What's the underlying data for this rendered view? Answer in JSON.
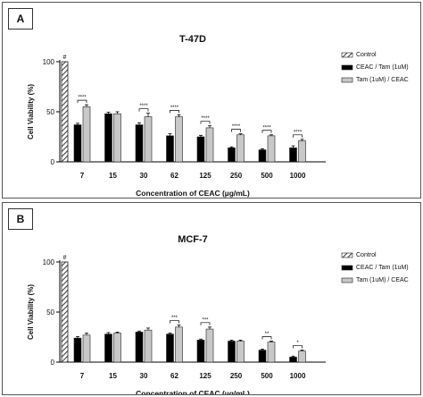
{
  "panels": [
    {
      "letter": "A"
    },
    {
      "letter": "B"
    }
  ],
  "chart_data": [
    {
      "type": "bar",
      "title": "T-47D",
      "xlabel": "Concentration of CEAC (µg/mL)",
      "ylabel": "Cell Viability (%)",
      "ylim": [
        0,
        100
      ],
      "yticks": [
        0,
        50,
        100
      ],
      "categories": [
        "7",
        "15",
        "30",
        "62",
        "125",
        "250",
        "500",
        "1000"
      ],
      "control": {
        "name": "Control",
        "value": 100,
        "annotation": "#"
      },
      "series": [
        {
          "name": "CEAC / Tam (1uM)",
          "color": "#000000",
          "values": [
            37,
            48,
            37,
            26,
            25,
            14,
            12,
            14
          ],
          "errors": [
            1.5,
            1.5,
            2,
            2,
            1.5,
            1,
            1,
            2
          ]
        },
        {
          "name": "Tam (1uM) / CEAC",
          "color": "#c8c8c8",
          "values": [
            55,
            48,
            45,
            45,
            34,
            27,
            26,
            21
          ],
          "errors": [
            2,
            2,
            3.5,
            2,
            2,
            1,
            1,
            1.5
          ]
        }
      ],
      "significance": [
        "****",
        "",
        "****",
        "****",
        "****",
        "****",
        "****",
        "****"
      ],
      "legend_position": "right"
    },
    {
      "type": "bar",
      "title": "MCF-7",
      "xlabel": "Concentration of CEAC (µg/mL)",
      "ylabel": "Cell Viability (%)",
      "ylim": [
        0,
        100
      ],
      "yticks": [
        0,
        50,
        100
      ],
      "categories": [
        "7",
        "15",
        "30",
        "62",
        "125",
        "250",
        "500",
        "1000"
      ],
      "control": {
        "name": "Control",
        "value": 100,
        "annotation": "#"
      },
      "series": [
        {
          "name": "CEAC / Tam (1uM)",
          "color": "#000000",
          "values": [
            24,
            28,
            30,
            28,
            22,
            21,
            12,
            5
          ],
          "errors": [
            1.5,
            1.5,
            1,
            1,
            1,
            1,
            1,
            1
          ]
        },
        {
          "name": "Tam (1uM) / CEAC",
          "color": "#c8c8c8",
          "values": [
            27,
            29,
            32,
            35,
            33,
            21,
            20,
            11
          ],
          "errors": [
            2,
            1,
            2,
            2,
            2,
            1,
            1,
            1
          ]
        }
      ],
      "significance": [
        "",
        "",
        "",
        "***",
        "***",
        "",
        "**",
        "*"
      ],
      "legend_position": "right"
    }
  ]
}
